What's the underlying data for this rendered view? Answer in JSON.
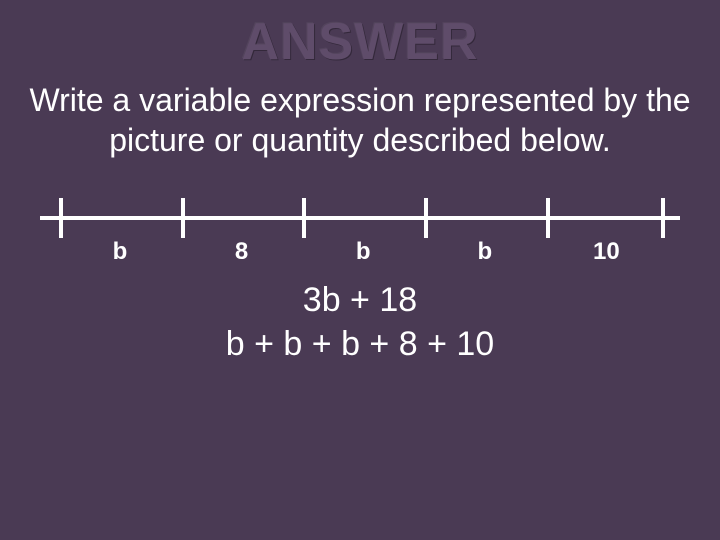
{
  "title": {
    "text": "ANSWER",
    "fontsize": 52,
    "color": "#5f4c6a"
  },
  "instruction": {
    "text": "Write a variable expression represented by the picture or quantity described below.",
    "fontsize": 32,
    "color": "#ffffff"
  },
  "numberline": {
    "line_color": "#ffffff",
    "tick_color": "#ffffff",
    "tick_positions_pct": [
      3,
      22,
      41,
      60,
      79,
      97
    ],
    "labels": [
      "b",
      "8",
      "b",
      "b",
      "10"
    ],
    "label_positions_pct": [
      12.5,
      31.5,
      50.5,
      69.5,
      88.5
    ],
    "label_fontsize": 24,
    "label_fontweight": "bold"
  },
  "expressions": {
    "line1": "3b + 18",
    "line2": "b + b + b + 8 + 10",
    "fontsize": 34,
    "color": "#ffffff"
  },
  "background_color": "#4a3a54"
}
